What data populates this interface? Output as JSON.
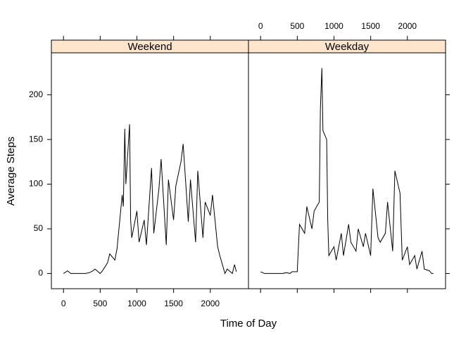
{
  "chart_data": {
    "type": "line",
    "xlabel": "Time of Day",
    "ylabel": "Average Steps",
    "x": [
      0,
      55,
      100,
      200,
      300,
      355,
      400,
      430,
      500,
      530,
      600,
      630,
      700,
      730,
      800,
      815,
      835,
      850,
      900,
      915,
      930,
      1000,
      1030,
      1100,
      1130,
      1200,
      1230,
      1300,
      1330,
      1400,
      1430,
      1500,
      1530,
      1600,
      1630,
      1700,
      1730,
      1800,
      1830,
      1900,
      1930,
      2000,
      2030,
      2100,
      2130,
      2200,
      2230,
      2300,
      2330,
      2355
    ],
    "series": [
      {
        "name": "Weekend",
        "color": "#000000",
        "values": [
          0,
          3,
          0,
          0,
          0,
          1,
          3,
          5,
          0,
          3,
          12,
          22,
          15,
          28,
          88,
          75,
          162,
          100,
          167,
          60,
          40,
          70,
          35,
          60,
          32,
          118,
          45,
          95,
          128,
          32,
          105,
          60,
          98,
          125,
          145,
          58,
          105,
          35,
          115,
          40,
          80,
          65,
          88,
          30,
          20,
          0,
          5,
          0,
          10,
          2
        ]
      },
      {
        "name": "Weekday",
        "color": "#000000",
        "values": [
          2,
          0,
          0,
          0,
          0,
          1,
          0,
          2,
          2,
          55,
          45,
          75,
          50,
          70,
          80,
          185,
          230,
          160,
          150,
          60,
          20,
          30,
          15,
          45,
          20,
          55,
          35,
          25,
          50,
          30,
          45,
          20,
          95,
          40,
          35,
          45,
          80,
          25,
          115,
          90,
          15,
          30,
          10,
          20,
          5,
          25,
          5,
          3,
          0,
          0
        ]
      }
    ],
    "xlim": [
      -165,
      2520
    ],
    "xticks": [
      0,
      500,
      1000,
      1500,
      2000
    ],
    "ylim": [
      -17,
      247
    ],
    "yticks": [
      0,
      50,
      100,
      150,
      200
    ],
    "strip_color": "#ffe5cc"
  }
}
